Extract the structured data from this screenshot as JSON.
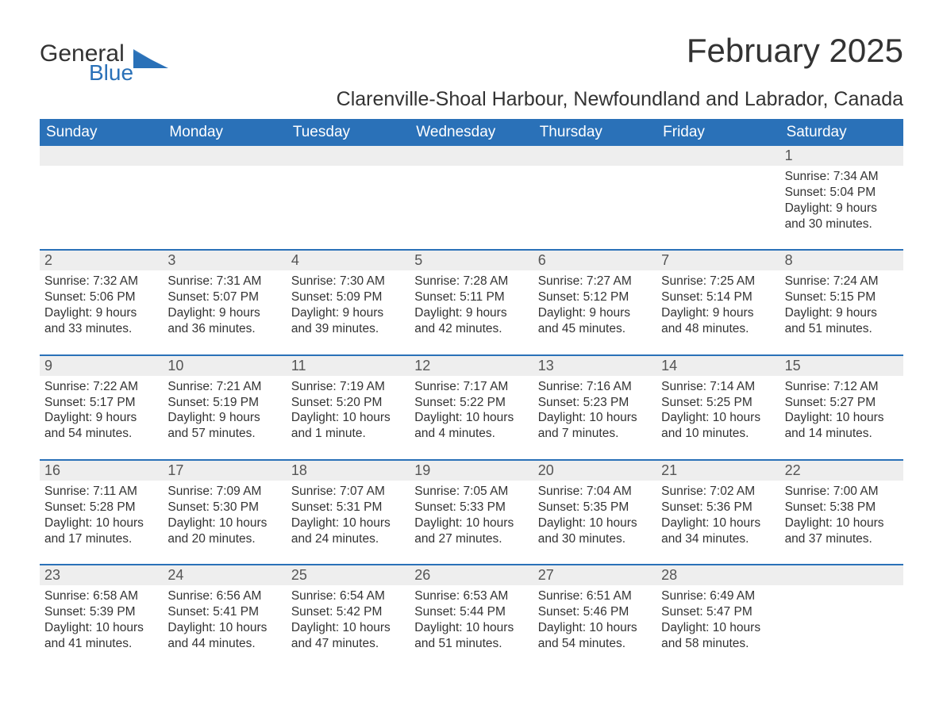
{
  "logo": {
    "text1": "General",
    "text2": "Blue"
  },
  "title": "February 2025",
  "subtitle": "Clarenville-Shoal Harbour, Newfoundland and Labrador, Canada",
  "colors": {
    "brand": "#2a71b8",
    "headerBg": "#2a71b8",
    "headerText": "#ffffff",
    "dayNumBg": "#eeeeee",
    "text": "#333333",
    "background": "#ffffff"
  },
  "typography": {
    "title_fontsize": 42,
    "subtitle_fontsize": 25,
    "dow_fontsize": 19,
    "daynum_fontsize": 18,
    "body_fontsize": 15.5
  },
  "daysOfWeek": [
    "Sunday",
    "Monday",
    "Tuesday",
    "Wednesday",
    "Thursday",
    "Friday",
    "Saturday"
  ],
  "weeks": [
    [
      {
        "n": "",
        "lines": []
      },
      {
        "n": "",
        "lines": []
      },
      {
        "n": "",
        "lines": []
      },
      {
        "n": "",
        "lines": []
      },
      {
        "n": "",
        "lines": []
      },
      {
        "n": "",
        "lines": []
      },
      {
        "n": "1",
        "lines": [
          "Sunrise: 7:34 AM",
          "Sunset: 5:04 PM",
          "Daylight: 9 hours and 30 minutes."
        ]
      }
    ],
    [
      {
        "n": "2",
        "lines": [
          "Sunrise: 7:32 AM",
          "Sunset: 5:06 PM",
          "Daylight: 9 hours and 33 minutes."
        ]
      },
      {
        "n": "3",
        "lines": [
          "Sunrise: 7:31 AM",
          "Sunset: 5:07 PM",
          "Daylight: 9 hours and 36 minutes."
        ]
      },
      {
        "n": "4",
        "lines": [
          "Sunrise: 7:30 AM",
          "Sunset: 5:09 PM",
          "Daylight: 9 hours and 39 minutes."
        ]
      },
      {
        "n": "5",
        "lines": [
          "Sunrise: 7:28 AM",
          "Sunset: 5:11 PM",
          "Daylight: 9 hours and 42 minutes."
        ]
      },
      {
        "n": "6",
        "lines": [
          "Sunrise: 7:27 AM",
          "Sunset: 5:12 PM",
          "Daylight: 9 hours and 45 minutes."
        ]
      },
      {
        "n": "7",
        "lines": [
          "Sunrise: 7:25 AM",
          "Sunset: 5:14 PM",
          "Daylight: 9 hours and 48 minutes."
        ]
      },
      {
        "n": "8",
        "lines": [
          "Sunrise: 7:24 AM",
          "Sunset: 5:15 PM",
          "Daylight: 9 hours and 51 minutes."
        ]
      }
    ],
    [
      {
        "n": "9",
        "lines": [
          "Sunrise: 7:22 AM",
          "Sunset: 5:17 PM",
          "Daylight: 9 hours and 54 minutes."
        ]
      },
      {
        "n": "10",
        "lines": [
          "Sunrise: 7:21 AM",
          "Sunset: 5:19 PM",
          "Daylight: 9 hours and 57 minutes."
        ]
      },
      {
        "n": "11",
        "lines": [
          "Sunrise: 7:19 AM",
          "Sunset: 5:20 PM",
          "Daylight: 10 hours and 1 minute."
        ]
      },
      {
        "n": "12",
        "lines": [
          "Sunrise: 7:17 AM",
          "Sunset: 5:22 PM",
          "Daylight: 10 hours and 4 minutes."
        ]
      },
      {
        "n": "13",
        "lines": [
          "Sunrise: 7:16 AM",
          "Sunset: 5:23 PM",
          "Daylight: 10 hours and 7 minutes."
        ]
      },
      {
        "n": "14",
        "lines": [
          "Sunrise: 7:14 AM",
          "Sunset: 5:25 PM",
          "Daylight: 10 hours and 10 minutes."
        ]
      },
      {
        "n": "15",
        "lines": [
          "Sunrise: 7:12 AM",
          "Sunset: 5:27 PM",
          "Daylight: 10 hours and 14 minutes."
        ]
      }
    ],
    [
      {
        "n": "16",
        "lines": [
          "Sunrise: 7:11 AM",
          "Sunset: 5:28 PM",
          "Daylight: 10 hours and 17 minutes."
        ]
      },
      {
        "n": "17",
        "lines": [
          "Sunrise: 7:09 AM",
          "Sunset: 5:30 PM",
          "Daylight: 10 hours and 20 minutes."
        ]
      },
      {
        "n": "18",
        "lines": [
          "Sunrise: 7:07 AM",
          "Sunset: 5:31 PM",
          "Daylight: 10 hours and 24 minutes."
        ]
      },
      {
        "n": "19",
        "lines": [
          "Sunrise: 7:05 AM",
          "Sunset: 5:33 PM",
          "Daylight: 10 hours and 27 minutes."
        ]
      },
      {
        "n": "20",
        "lines": [
          "Sunrise: 7:04 AM",
          "Sunset: 5:35 PM",
          "Daylight: 10 hours and 30 minutes."
        ]
      },
      {
        "n": "21",
        "lines": [
          "Sunrise: 7:02 AM",
          "Sunset: 5:36 PM",
          "Daylight: 10 hours and 34 minutes."
        ]
      },
      {
        "n": "22",
        "lines": [
          "Sunrise: 7:00 AM",
          "Sunset: 5:38 PM",
          "Daylight: 10 hours and 37 minutes."
        ]
      }
    ],
    [
      {
        "n": "23",
        "lines": [
          "Sunrise: 6:58 AM",
          "Sunset: 5:39 PM",
          "Daylight: 10 hours and 41 minutes."
        ]
      },
      {
        "n": "24",
        "lines": [
          "Sunrise: 6:56 AM",
          "Sunset: 5:41 PM",
          "Daylight: 10 hours and 44 minutes."
        ]
      },
      {
        "n": "25",
        "lines": [
          "Sunrise: 6:54 AM",
          "Sunset: 5:42 PM",
          "Daylight: 10 hours and 47 minutes."
        ]
      },
      {
        "n": "26",
        "lines": [
          "Sunrise: 6:53 AM",
          "Sunset: 5:44 PM",
          "Daylight: 10 hours and 51 minutes."
        ]
      },
      {
        "n": "27",
        "lines": [
          "Sunrise: 6:51 AM",
          "Sunset: 5:46 PM",
          "Daylight: 10 hours and 54 minutes."
        ]
      },
      {
        "n": "28",
        "lines": [
          "Sunrise: 6:49 AM",
          "Sunset: 5:47 PM",
          "Daylight: 10 hours and 58 minutes."
        ]
      },
      {
        "n": "",
        "lines": []
      }
    ]
  ]
}
